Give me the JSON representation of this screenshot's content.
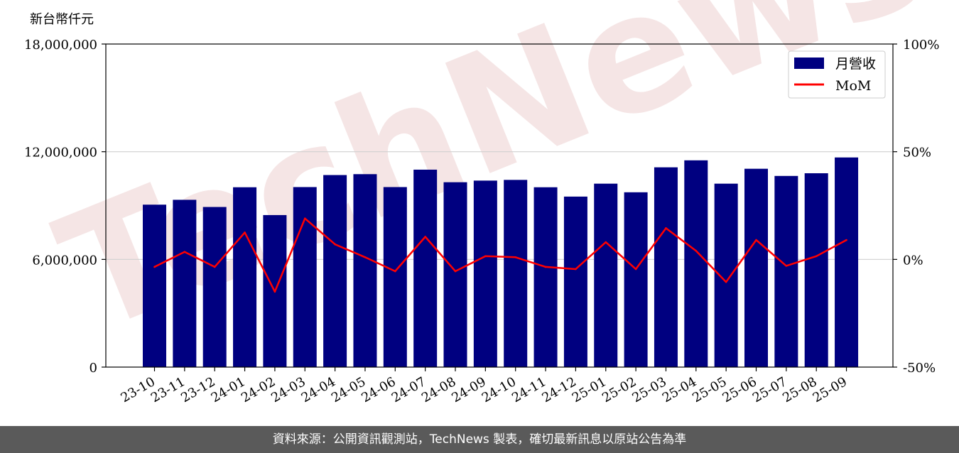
{
  "watermark": "TechNews",
  "footer": {
    "text": "資料來源：公開資訊觀測站，TechNews 製表，確切最新訊息以原站公告為準"
  },
  "colors": {
    "bar": "#000080",
    "line": "#ff0000",
    "grid": "#d0d0d0"
  },
  "chart_data": {
    "type": "bar",
    "unit_label": "新台幣仟元",
    "categories": [
      "23-10",
      "23-11",
      "23-12",
      "24-01",
      "24-02",
      "24-03",
      "24-04",
      "24-05",
      "24-06",
      "24-07",
      "24-08",
      "24-09",
      "24-10",
      "24-11",
      "24-12",
      "25-01",
      "25-02",
      "25-03",
      "25-04",
      "25-05",
      "25-06",
      "25-07",
      "25-08",
      "25-09"
    ],
    "series": [
      {
        "name": "月營收",
        "type": "bar",
        "axis": "left",
        "values": [
          9050000,
          9320000,
          8920000,
          10020000,
          8470000,
          10030000,
          10700000,
          10750000,
          10030000,
          11000000,
          10300000,
          10390000,
          10430000,
          10020000,
          9500000,
          10220000,
          9740000,
          11130000,
          11520000,
          10220000,
          11050000,
          10650000,
          10800000,
          11680000
        ]
      },
      {
        "name": "MoM",
        "type": "line",
        "axis": "right",
        "values": [
          -3.5,
          3.5,
          -3.5,
          12.5,
          -15,
          19,
          7,
          1,
          -5.5,
          10.5,
          -5.5,
          1.5,
          1,
          -3.5,
          -4.5,
          8,
          -4.5,
          14.5,
          4,
          -10.5,
          9,
          -3,
          1.5,
          9
        ]
      }
    ],
    "y_left": {
      "ylim": [
        0,
        18000000
      ],
      "ticks": [
        0,
        6000000,
        12000000,
        18000000
      ],
      "tick_labels": [
        "0",
        "6,000,000",
        "12,000,000",
        "18,000,000"
      ]
    },
    "y_right": {
      "ylim": [
        -50,
        100
      ],
      "ticks": [
        -50,
        0,
        50,
        100
      ],
      "tick_labels": [
        "-50%",
        "0%",
        "50%",
        "100%"
      ]
    },
    "grid": "horizontal",
    "legend_position": "top-right"
  }
}
